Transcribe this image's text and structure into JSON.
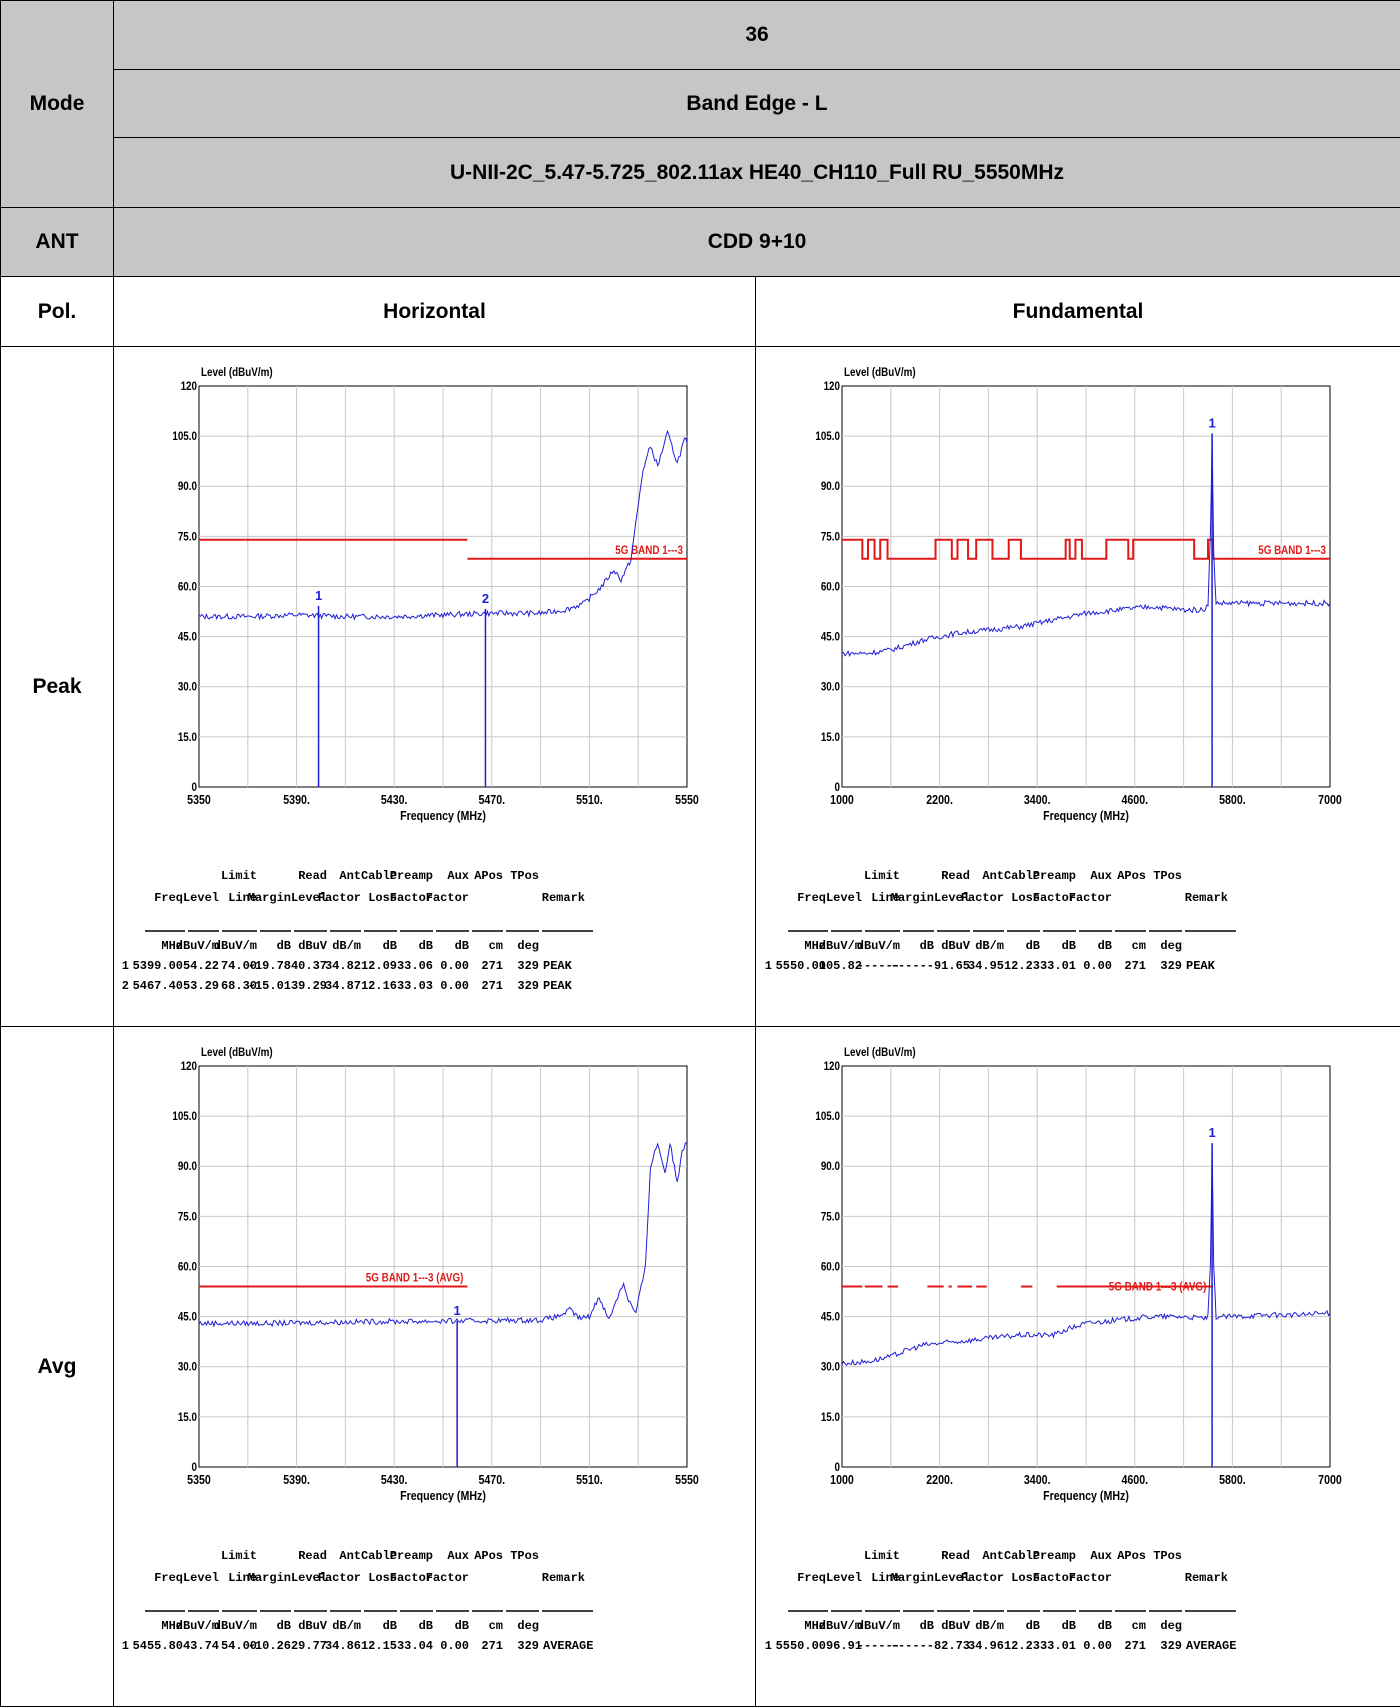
{
  "header": {
    "test": "36",
    "mode_label": "Mode",
    "mode": "Band Edge - L",
    "config": "U-NII-2C_5.47-5.725_802.11ax HE40_CH110_Full RU_5550MHz",
    "ant_label": "ANT",
    "ant": "CDD 9+10",
    "pol_label": "Pol.",
    "col1": "Horizontal",
    "col2": "Fundamental"
  },
  "rows": {
    "peak": "Peak",
    "avg": "Avg"
  },
  "chart_data": [
    {
      "id": "peak_h",
      "type": "line",
      "ylabel": "Level (dBuV/m)",
      "xlabel": "Frequency (MHz)",
      "xlim": [
        5350,
        5550
      ],
      "ylim": [
        0,
        120
      ],
      "xticks": [
        "5350",
        "5390.",
        "5430.",
        "5470.",
        "5510.",
        "5550"
      ],
      "yticks": [
        "0",
        "15.0",
        "30.0",
        "45.0",
        "60.0",
        "75.0",
        "90.0",
        "105.0",
        "120"
      ],
      "grid": true,
      "series": [
        {
          "color": "#1f1fd6",
          "x": [
            5350,
            5370,
            5390,
            5410,
            5430,
            5450,
            5470,
            5490,
            5500,
            5508,
            5515,
            5520,
            5523,
            5527,
            5532,
            5535,
            5538,
            5542,
            5546,
            5549,
            5550
          ],
          "y": [
            51,
            51,
            51.5,
            51,
            51,
            51.5,
            52,
            52,
            53,
            55,
            60,
            65,
            62,
            68,
            95,
            102,
            96,
            106,
            97,
            104,
            103
          ]
        }
      ],
      "limit_lines": [
        {
          "label": "",
          "color": "#e01818",
          "segments": [
            [
              5350,
              5460,
              74
            ]
          ]
        },
        {
          "label": "5G BAND 1---3",
          "color": "#e01818",
          "segments": [
            [
              5460,
              5550,
              68.3
            ]
          ]
        }
      ],
      "markers": [
        {
          "label": "1",
          "x": 5399.0,
          "y": 54.22
        },
        {
          "label": "2",
          "x": 5467.4,
          "y": 53.29
        }
      ],
      "table": {
        "h1": [
          "",
          "",
          "Limit",
          "",
          "Read",
          "Ant",
          "Cable",
          "Preamp",
          "Aux",
          "APos",
          "TPos",
          ""
        ],
        "h2": [
          "Freq",
          "Level",
          "Line",
          "Margin",
          "Level",
          "Factor",
          "Loss",
          "Factor",
          "Factor",
          "",
          "",
          "Remark"
        ],
        "units": [
          "MHz",
          "dBuV/m",
          "dBuV/m",
          "dB",
          "dBuV",
          "dB/m",
          "dB",
          "dB",
          "dB",
          "cm",
          "deg",
          ""
        ],
        "rows": [
          [
            "1",
            "5399.00",
            "54.22",
            "74.00",
            "-19.78",
            "40.37",
            "34.82",
            "12.09",
            "33.06",
            "0.00",
            "271",
            "329",
            "PEAK"
          ],
          [
            "2",
            "5467.40",
            "53.29",
            "68.30",
            "-15.01",
            "39.29",
            "34.87",
            "12.16",
            "33.03",
            "0.00",
            "271",
            "329",
            "PEAK"
          ]
        ]
      }
    },
    {
      "id": "peak_f",
      "type": "line",
      "ylabel": "Level (dBuV/m)",
      "xlabel": "Frequency (MHz)",
      "xlim": [
        1000,
        7000
      ],
      "ylim": [
        0,
        120
      ],
      "xticks": [
        "1000",
        "2200.",
        "3400.",
        "4600.",
        "5800.",
        "7000"
      ],
      "yticks": [
        "0",
        "15.0",
        "30.0",
        "45.0",
        "60.0",
        "75.0",
        "90.0",
        "105.0",
        "120"
      ],
      "grid": true,
      "series": [
        {
          "color": "#1f1fd6",
          "x": [
            1000,
            1300,
            1600,
            2000,
            2400,
            2800,
            3200,
            3600,
            4000,
            4400,
            4800,
            5200,
            5450,
            5500,
            5530,
            5550,
            5570,
            5600,
            5800,
            6200,
            6600,
            7000
          ],
          "y": [
            40,
            40,
            41,
            44,
            46,
            47,
            48,
            50,
            52,
            53,
            54,
            53,
            53,
            55,
            75,
            105,
            70,
            55,
            55,
            55,
            55,
            55
          ]
        }
      ],
      "limit_lines": [
        {
          "label": "5G BAND 1---3",
          "color": "#e01818",
          "steps": [
            [
              1000,
              74
            ],
            [
              1250,
              68.3
            ],
            [
              1320,
              74
            ],
            [
              1400,
              68.3
            ],
            [
              1470,
              74
            ],
            [
              1560,
              68.3
            ],
            [
              2150,
              74
            ],
            [
              2350,
              68.3
            ],
            [
              2420,
              74
            ],
            [
              2550,
              68.3
            ],
            [
              2650,
              74
            ],
            [
              2850,
              68.3
            ],
            [
              3050,
              74
            ],
            [
              3200,
              68.3
            ],
            [
              3750,
              74
            ],
            [
              3800,
              68.3
            ],
            [
              3870,
              74
            ],
            [
              3950,
              68.3
            ],
            [
              4250,
              74
            ],
            [
              4520,
              68.3
            ],
            [
              4580,
              74
            ],
            [
              5300,
              74
            ],
            [
              5330,
              68.3
            ],
            [
              5480,
              68.3
            ],
            [
              5500,
              74
            ],
            [
              5560,
              68.3
            ],
            [
              7000,
              68.3
            ]
          ]
        }
      ],
      "markers": [
        {
          "label": "1",
          "x": 5550.0,
          "y": 105.82
        }
      ],
      "table": {
        "h1": [
          "",
          "",
          "Limit",
          "",
          "Read",
          "Ant",
          "Cable",
          "Preamp",
          "Aux",
          "APos",
          "TPos",
          ""
        ],
        "h2": [
          "Freq",
          "Level",
          "Line",
          "Margin",
          "Level",
          "Factor",
          "Loss",
          "Factor",
          "Factor",
          "",
          "",
          "Remark"
        ],
        "units": [
          "MHz",
          "dBuV/m",
          "dBuV/m",
          "dB",
          "dBuV",
          "dB/m",
          "dB",
          "dB",
          "dB",
          "cm",
          "deg",
          ""
        ],
        "rows": [
          [
            "1",
            "5550.00",
            "105.82",
            "------",
            "------",
            "91.65",
            "34.95",
            "12.23",
            "33.01",
            "0.00",
            "271",
            "329",
            "PEAK"
          ]
        ]
      }
    },
    {
      "id": "avg_h",
      "type": "line",
      "ylabel": "Level (dBuV/m)",
      "xlabel": "Frequency (MHz)",
      "xlim": [
        5350,
        5550
      ],
      "ylim": [
        0,
        120
      ],
      "xticks": [
        "5350",
        "5390.",
        "5430.",
        "5470.",
        "5510.",
        "5550"
      ],
      "yticks": [
        "0",
        "15.0",
        "30.0",
        "45.0",
        "60.0",
        "75.0",
        "90.0",
        "105.0",
        "120"
      ],
      "grid": true,
      "series": [
        {
          "color": "#1f1fd6",
          "x": [
            5350,
            5380,
            5420,
            5460,
            5490,
            5497,
            5502,
            5506,
            5510,
            5514,
            5518,
            5521,
            5524,
            5526,
            5529,
            5533,
            5535,
            5538,
            5541,
            5543,
            5546,
            5548,
            5550
          ],
          "y": [
            43,
            43,
            43.5,
            43.7,
            44,
            45,
            47,
            44.5,
            45,
            51,
            44,
            50,
            55,
            50,
            46,
            60,
            90,
            97,
            88,
            97,
            85,
            95,
            97
          ]
        }
      ],
      "limit_lines": [
        {
          "label": "5G BAND 1---3 (AVG)",
          "color": "#e01818",
          "segments": [
            [
              5350,
              5460,
              54
            ]
          ]
        }
      ],
      "markers": [
        {
          "label": "1",
          "x": 5455.8,
          "y": 43.74
        }
      ],
      "table": {
        "h1": [
          "",
          "",
          "Limit",
          "",
          "Read",
          "Ant",
          "Cable",
          "Preamp",
          "Aux",
          "APos",
          "TPos",
          ""
        ],
        "h2": [
          "Freq",
          "Level",
          "Line",
          "Margin",
          "Level",
          "Factor",
          "Loss",
          "Factor",
          "Factor",
          "",
          "",
          "Remark"
        ],
        "units": [
          "MHz",
          "dBuV/m",
          "dBuV/m",
          "dB",
          "dBuV",
          "dB/m",
          "dB",
          "dB",
          "dB",
          "cm",
          "deg",
          ""
        ],
        "rows": [
          [
            "1",
            "5455.80",
            "43.74",
            "54.00",
            "-10.26",
            "29.77",
            "34.86",
            "12.15",
            "33.04",
            "0.00",
            "271",
            "329",
            "AVERAGE"
          ]
        ]
      }
    },
    {
      "id": "avg_f",
      "type": "line",
      "ylabel": "Level (dBuV/m)",
      "xlabel": "Frequency (MHz)",
      "xlim": [
        1000,
        7000
      ],
      "ylim": [
        0,
        120
      ],
      "xticks": [
        "1000",
        "2200.",
        "3400.",
        "4600.",
        "5800.",
        "7000"
      ],
      "yticks": [
        "0",
        "15.0",
        "30.0",
        "45.0",
        "60.0",
        "75.0",
        "90.0",
        "105.0",
        "120"
      ],
      "grid": true,
      "series": [
        {
          "color": "#1f1fd6",
          "x": [
            1000,
            1300,
            1600,
            1800,
            2000,
            2400,
            2800,
            3200,
            3600,
            3800,
            4000,
            4400,
            4800,
            5200,
            5450,
            5500,
            5530,
            5550,
            5570,
            5600,
            5800,
            6200,
            6600,
            7000
          ],
          "y": [
            31,
            31.5,
            33,
            35,
            36.5,
            37.5,
            38.5,
            39.5,
            39.5,
            41.5,
            43,
            44,
            45,
            45,
            44.5,
            45,
            60,
            96,
            60,
            45,
            45,
            45.5,
            45.5,
            46
          ]
        }
      ],
      "limit_lines": [
        {
          "label": "5G BAND 1---3 (AVG)",
          "color": "#e01818",
          "dashes": [
            [
              1000,
              1250
            ],
            [
              1280,
              1500
            ],
            [
              1560,
              1690
            ],
            [
              2050,
              2250
            ],
            [
              2310,
              2350
            ],
            [
              2420,
              2600
            ],
            [
              2650,
              2780
            ],
            [
              3200,
              3340
            ],
            [
              3640,
              5560
            ]
          ],
          "value": 54
        }
      ],
      "markers": [
        {
          "label": "1",
          "x": 5550.0,
          "y": 96.91
        }
      ],
      "table": {
        "h1": [
          "",
          "",
          "Limit",
          "",
          "Read",
          "Ant",
          "Cable",
          "Preamp",
          "Aux",
          "APos",
          "TPos",
          ""
        ],
        "h2": [
          "Freq",
          "Level",
          "Line",
          "Margin",
          "Level",
          "Factor",
          "Loss",
          "Factor",
          "Factor",
          "",
          "",
          "Remark"
        ],
        "units": [
          "MHz",
          "dBuV/m",
          "dBuV/m",
          "dB",
          "dBuV",
          "dB/m",
          "dB",
          "dB",
          "dB",
          "cm",
          "deg",
          ""
        ],
        "rows": [
          [
            "1",
            "5550.00",
            "96.91",
            "------",
            "------",
            "82.73",
            "34.96",
            "12.23",
            "33.01",
            "0.00",
            "271",
            "329",
            "AVERAGE"
          ]
        ]
      }
    }
  ]
}
